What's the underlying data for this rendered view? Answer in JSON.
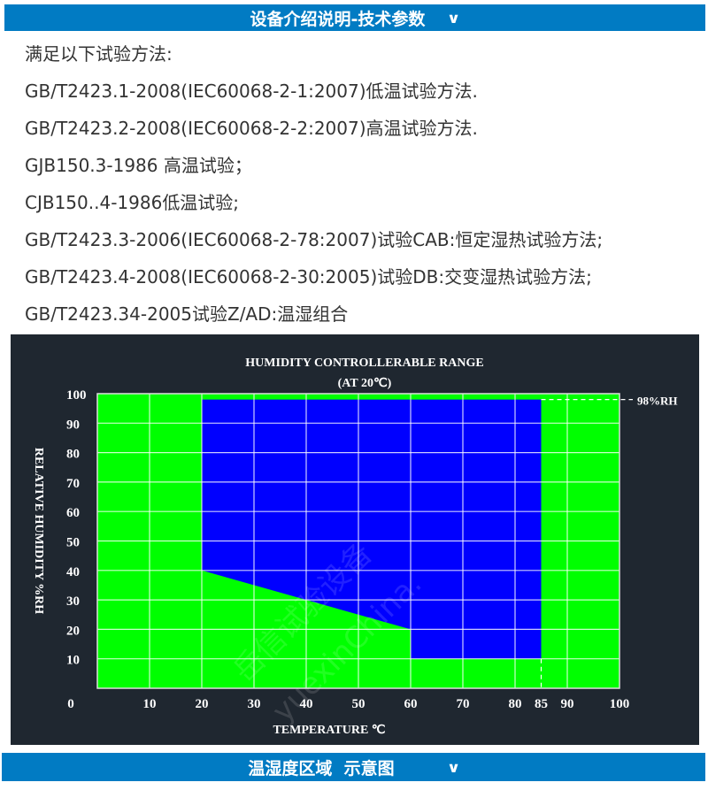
{
  "header": {
    "title": "设备介绍说明-技术参数",
    "chevron_icon": "chevron-down-icon"
  },
  "standards": [
    "满足以下试验方法:",
    "GB/T2423.1-2008(IEC60068-2-1:2007)低温试验方法.",
    "GB/T2423.2-2008(IEC60068-2-2:2007)高温试验方法.",
    "GJB150.3-1986 高温试验；",
    "CJB150..4-1986低温试验;",
    "GB/T2423.3-2006(IEC60068-2-78:2007)试验CAB:恒定湿热试验方法;",
    "GB/T2423.4-2008(IEC60068-2-30:2005)试验DB:交变湿热试验方法;",
    "GB/T2423.34-2005试验Z/AD:温湿组合"
  ],
  "chart_data": {
    "type": "area",
    "title": "HUMIDITY CONTROLLERABLE RANGE",
    "subtitle": "(AT 20℃)",
    "xlabel": "TEMPERATURE ℃",
    "ylabel": "RELATIVE HUMIDITY %RH",
    "xlim": [
      0,
      100
    ],
    "ylim": [
      0,
      100
    ],
    "x_ticks": [
      "0",
      "10",
      "20",
      "30",
      "40",
      "50",
      "60",
      "70",
      "80",
      "85",
      "90",
      "100"
    ],
    "y_ticks": [
      "100",
      "90",
      "80",
      "70",
      "60",
      "50",
      "40",
      "30",
      "20",
      "10"
    ],
    "grid": true,
    "region": {
      "points": [
        [
          20,
          98
        ],
        [
          85,
          98
        ],
        [
          85,
          10
        ],
        [
          60,
          10
        ],
        [
          60,
          20
        ],
        [
          20,
          40
        ]
      ],
      "color": "#0000ff"
    },
    "background_color": "#00ff00",
    "reference_line": {
      "y": 98,
      "label": "98%RH"
    },
    "reference_x": 85
  },
  "watermark": "岳信试验设备 yuexinChina.",
  "footer": {
    "title": "温湿度区域  示意图",
    "chevron_icon": "chevron-down-icon"
  }
}
